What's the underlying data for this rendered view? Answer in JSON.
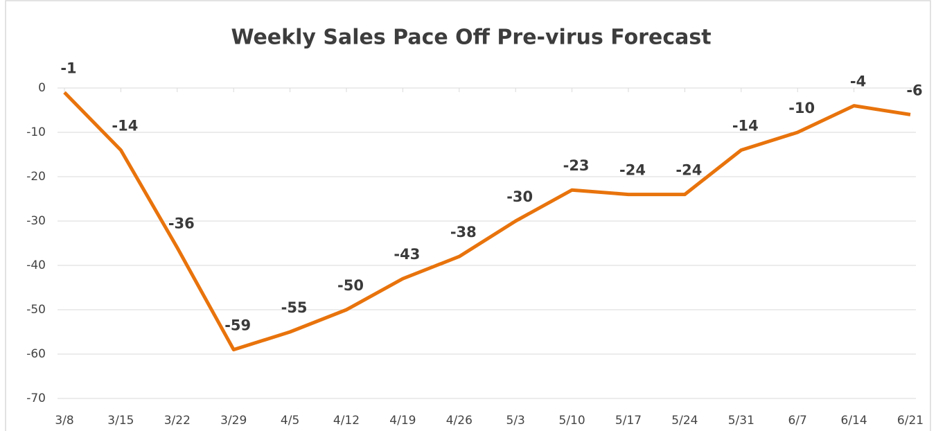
{
  "chart_data": {
    "type": "line",
    "title": "Weekly Sales Pace Off Pre-virus Forecast",
    "categories": [
      "3/8",
      "3/15",
      "3/22",
      "3/29",
      "4/5",
      "4/12",
      "4/19",
      "4/26",
      "5/3",
      "5/10",
      "5/17",
      "5/24",
      "5/31",
      "6/7",
      "6/14",
      "6/21"
    ],
    "values": [
      -1,
      -14,
      -36,
      -59,
      -55,
      -50,
      -43,
      -38,
      -30,
      -23,
      -24,
      -24,
      -14,
      -10,
      -4,
      -6
    ],
    "color": "#e8730c",
    "ylim": [
      -70,
      0
    ],
    "yticks": [
      0,
      -10,
      -20,
      -30,
      -40,
      -50,
      -60,
      -70
    ],
    "grid": true
  }
}
